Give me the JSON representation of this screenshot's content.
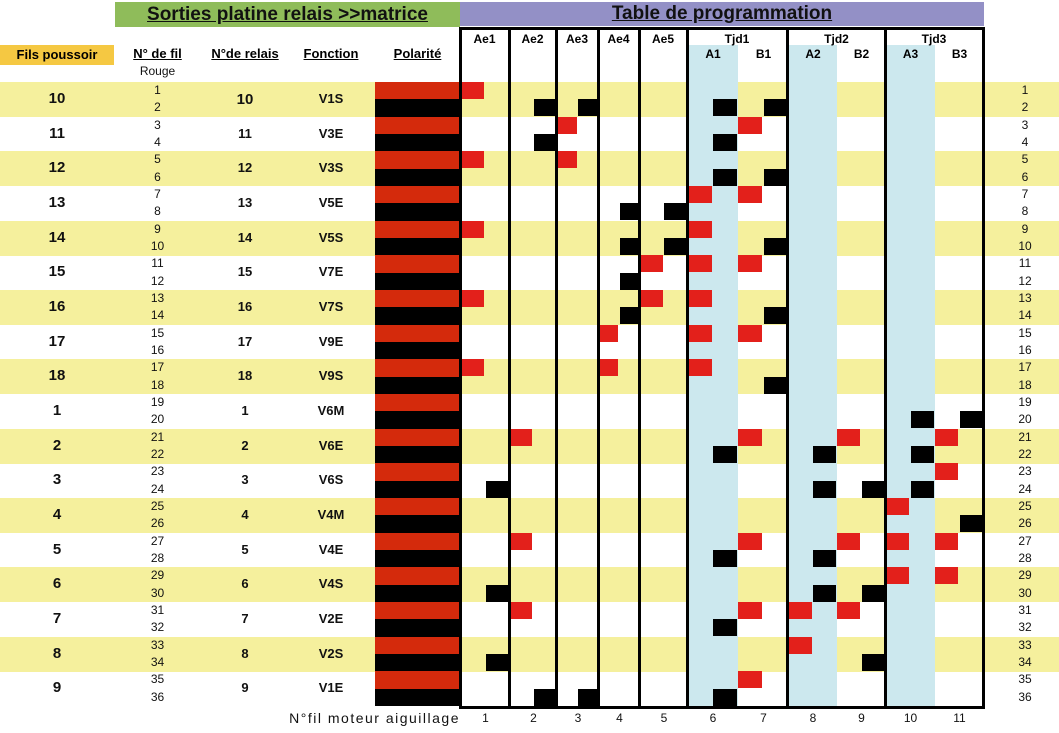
{
  "headers": {
    "left_title": "Sorties platine relais >>matrice",
    "right_title": "Table de programmation",
    "fils_poussoir": "Fils poussoir",
    "no_fil": "N° de fil",
    "rouge": "Rouge",
    "no_relais": "N°de relais",
    "fonction": "Fonction",
    "polarite": "Polarité",
    "footer": "N°fil moteur aiguillage"
  },
  "groups": [
    {
      "label": "Ae1"
    },
    {
      "label": "Ae2"
    },
    {
      "label": "Ae3"
    },
    {
      "label": "Ae4"
    },
    {
      "label": "Ae5"
    },
    {
      "label": "Tjd1"
    },
    {
      "label": "Tjd2"
    },
    {
      "label": "Tjd3"
    }
  ],
  "sub_labels": [
    "A1",
    "B1",
    "A2",
    "B2",
    "A3",
    "B3"
  ],
  "rows": [
    {
      "fils": "10",
      "relais": "10",
      "fonction": "V1S"
    },
    {
      "fils": "11",
      "relais": "11",
      "fonction": "V3E"
    },
    {
      "fils": "12",
      "relais": "12",
      "fonction": "V3S"
    },
    {
      "fils": "13",
      "relais": "13",
      "fonction": "V5E"
    },
    {
      "fils": "14",
      "relais": "14",
      "fonction": "V5S"
    },
    {
      "fils": "15",
      "relais": "15",
      "fonction": "V7E"
    },
    {
      "fils": "16",
      "relais": "16",
      "fonction": "V7S"
    },
    {
      "fils": "17",
      "relais": "17",
      "fonction": "V9E"
    },
    {
      "fils": "18",
      "relais": "18",
      "fonction": "V9S"
    },
    {
      "fils": "1",
      "relais": "1",
      "fonction": "V6M"
    },
    {
      "fils": "2",
      "relais": "2",
      "fonction": "V6E"
    },
    {
      "fils": "3",
      "relais": "3",
      "fonction": "V6S"
    },
    {
      "fils": "4",
      "relais": "4",
      "fonction": "V4M"
    },
    {
      "fils": "5",
      "relais": "5",
      "fonction": "V4E"
    },
    {
      "fils": "6",
      "relais": "6",
      "fonction": "V4S"
    },
    {
      "fils": "7",
      "relais": "7",
      "fonction": "V2E"
    },
    {
      "fils": "8",
      "relais": "8",
      "fonction": "V2S"
    },
    {
      "fils": "9",
      "relais": "9",
      "fonction": "V1E"
    }
  ],
  "wires": [
    "1",
    "2",
    "3",
    "4",
    "5",
    "6",
    "7",
    "8",
    "9",
    "10",
    "11",
    "12",
    "13",
    "14",
    "15",
    "16",
    "17",
    "18",
    "19",
    "20",
    "21",
    "22",
    "23",
    "24",
    "25",
    "26",
    "27",
    "28",
    "29",
    "30",
    "31",
    "32",
    "33",
    "34",
    "35",
    "36"
  ],
  "motor_columns": [
    {
      "num": "1",
      "red": [
        1,
        5,
        9,
        13,
        17
      ],
      "black": [
        24,
        30,
        34
      ]
    },
    {
      "num": "2",
      "red": [
        21,
        27,
        31
      ],
      "black": [
        2,
        4,
        36
      ]
    },
    {
      "num": "3",
      "red": [
        3,
        5
      ],
      "black": [
        2,
        36
      ]
    },
    {
      "num": "4",
      "red": [
        15,
        17
      ],
      "black": [
        8,
        10,
        12,
        14
      ]
    },
    {
      "num": "5",
      "red": [
        11,
        13
      ],
      "black": [
        8,
        10
      ]
    },
    {
      "num": "6",
      "red": [
        7,
        9,
        11,
        13,
        15,
        17
      ],
      "black": [
        2,
        4,
        6,
        22,
        28,
        32,
        36
      ]
    },
    {
      "num": "7",
      "red": [
        3,
        7,
        11,
        15,
        21,
        27,
        31,
        35
      ],
      "black": [
        2,
        6,
        10,
        14,
        18
      ]
    },
    {
      "num": "8",
      "red": [
        31,
        33
      ],
      "black": [
        22,
        24,
        28,
        30
      ]
    },
    {
      "num": "9",
      "red": [
        21,
        27,
        31
      ],
      "black": [
        24,
        30,
        34
      ]
    },
    {
      "num": "10",
      "red": [
        25,
        27,
        29
      ],
      "black": [
        20,
        22,
        24
      ]
    },
    {
      "num": "11",
      "red": [
        21,
        23,
        27,
        29
      ],
      "black": [
        20,
        26
      ]
    }
  ],
  "colors": {
    "red": "#e3201b",
    "black": "#000000",
    "polarity_red": "#d42a0c",
    "yellow": "#f5f09d",
    "blue": "#cce8ee"
  }
}
